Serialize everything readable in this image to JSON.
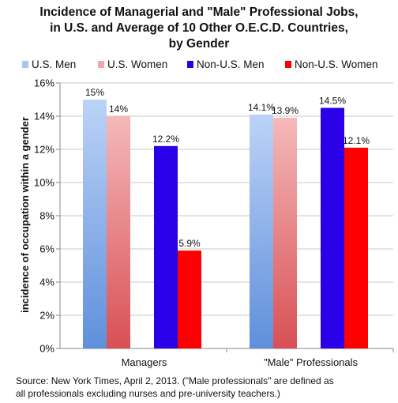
{
  "title_lines": [
    "Incidence of Managerial and \"Male\" Professional Jobs,",
    "in U.S. and Average of 10 Other O.E.C.D. Countries,",
    "by Gender"
  ],
  "source_lines": [
    "Source: New York Times, April 2, 2013. (\"Male professionals\" are defined as",
    "all professionals excluding nurses and pre-university teachers.)"
  ],
  "colors": {
    "us_men": "#6f9be0",
    "us_women": "#e0656a",
    "non_us_men": "#2a00e8",
    "non_us_women": "#ff0000"
  },
  "chart_data": {
    "type": "bar",
    "title": "Incidence of Managerial and \"Male\" Professional Jobs, in U.S. and Average of 10 Other O.E.C.D. Countries, by Gender",
    "xlabel": "",
    "ylabel": "incidence of occupation within a gender",
    "ylim": [
      0,
      16
    ],
    "yticks": [
      "0%",
      "2%",
      "4%",
      "6%",
      "8%",
      "10%",
      "12%",
      "14%",
      "16%"
    ],
    "categories": [
      "Managers",
      "\"Male\" Professionals"
    ],
    "legend_position": "top",
    "series": [
      {
        "name": "U.S. Men",
        "values": [
          15,
          14.1
        ],
        "labels": [
          "15%",
          "14.1%"
        ]
      },
      {
        "name": "U.S. Women",
        "values": [
          14,
          13.9
        ],
        "labels": [
          "14%",
          "13.9%"
        ]
      },
      {
        "name": "Non-U.S. Men",
        "values": [
          12.2,
          14.5
        ],
        "labels": [
          "12.2%",
          "14.5%"
        ]
      },
      {
        "name": "Non-U.S. Women",
        "values": [
          5.9,
          12.1
        ],
        "labels": [
          "5.9%",
          "12.1%"
        ]
      }
    ]
  }
}
